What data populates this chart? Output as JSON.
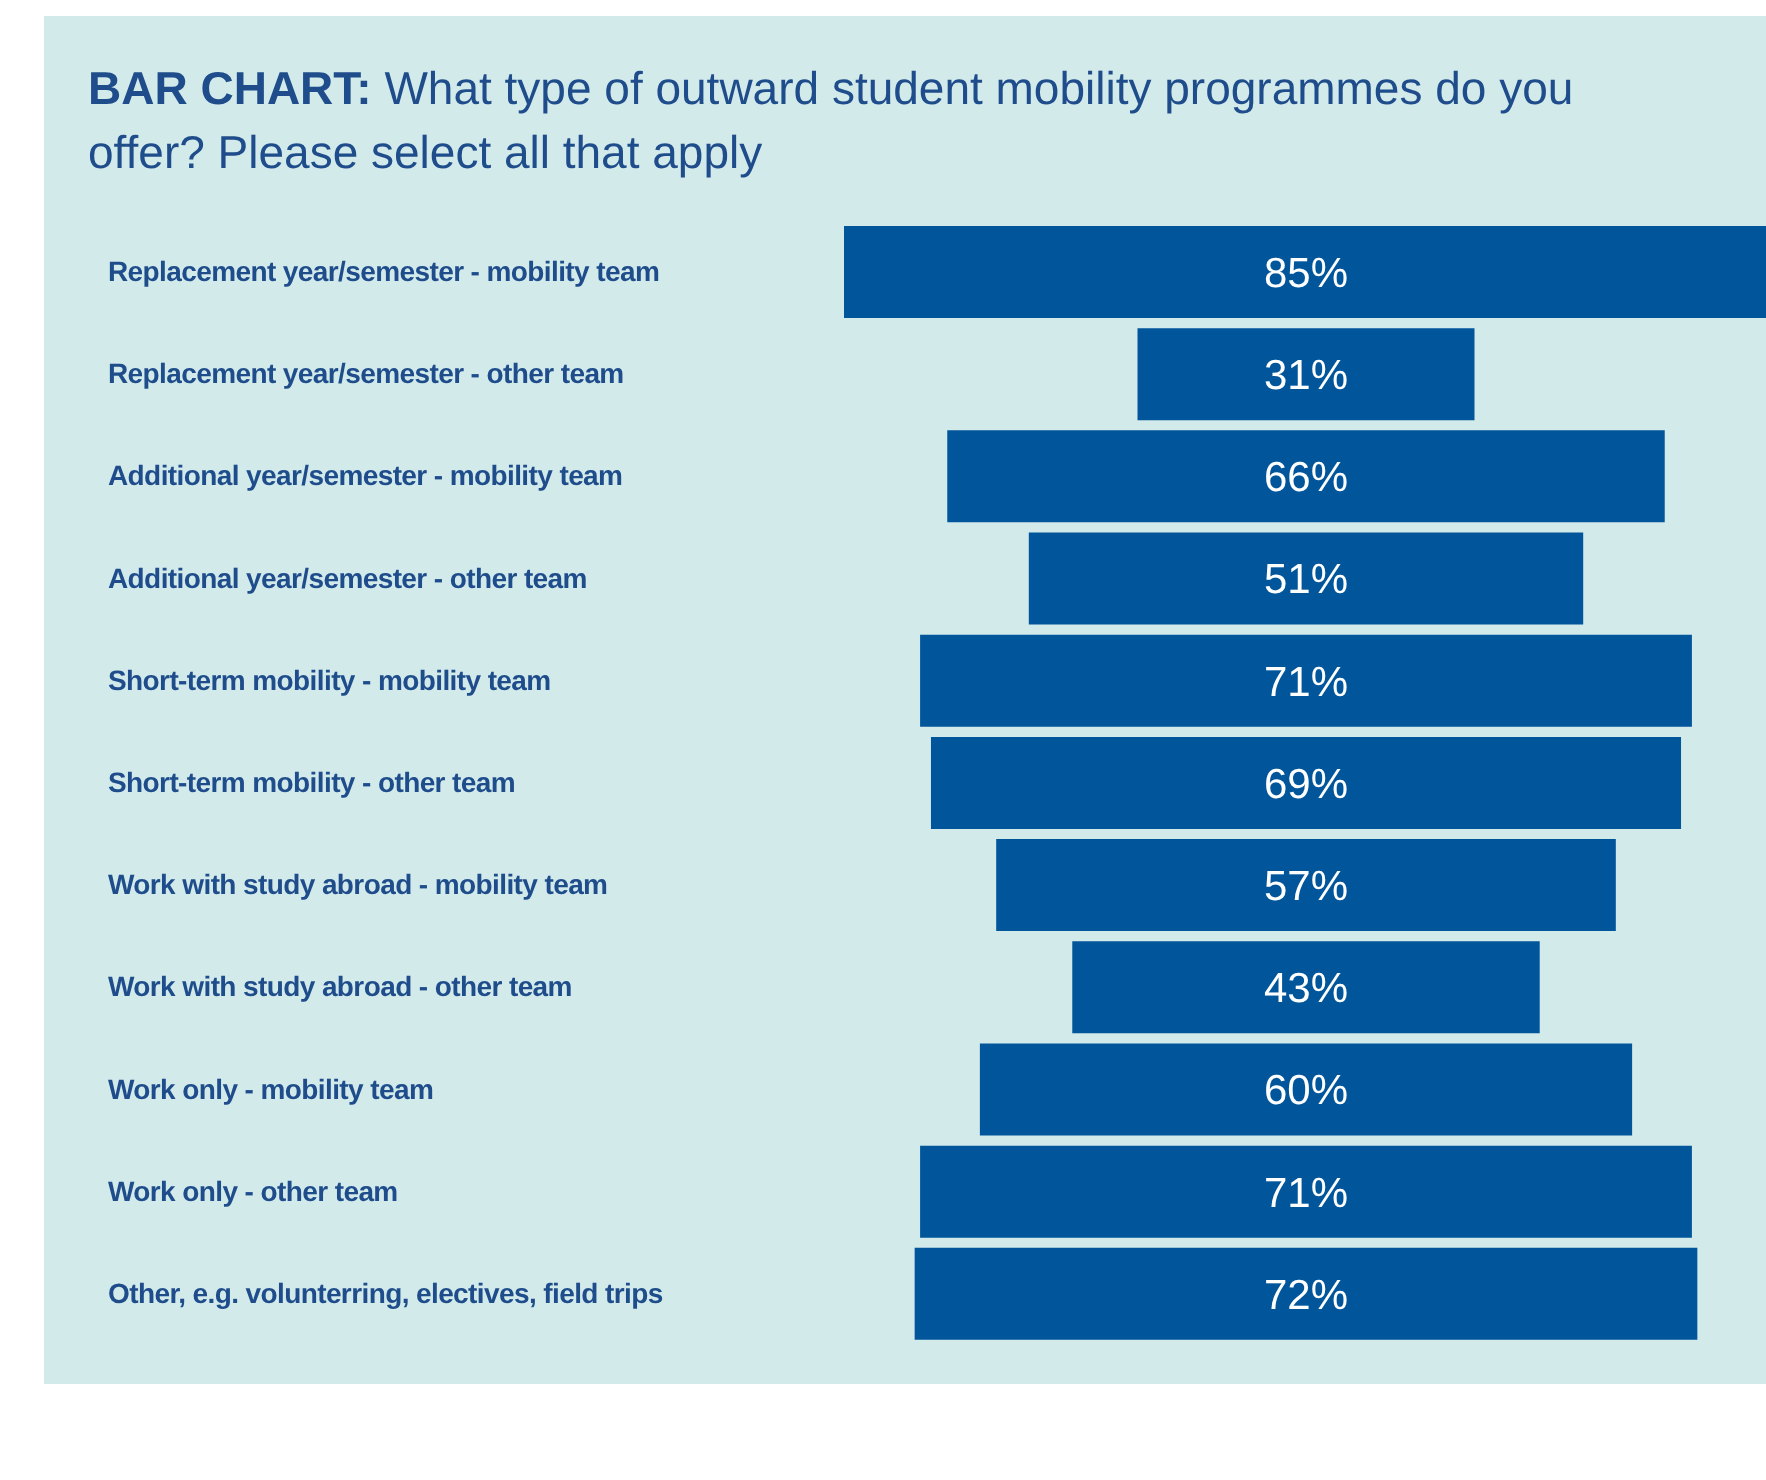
{
  "chart_data": {
    "type": "other",
    "title": "BAR CHART: What type of outward student mobility programmes do you offer? Please select all that apply",
    "categories": [
      "Replacement year/semester - mobility team",
      "Replacement year/semester - other team",
      "Additional year/semester - mobility team",
      "Additional year/semester - other team",
      "Short-term mobility - mobility team",
      "Short-term mobility - other team",
      "Work with study abroad - mobility team",
      "Work with study abroad - other team",
      "Work only - mobility team",
      "Work only - other team",
      "Other, e.g. volunterring, electives, field trips"
    ],
    "values": [
      85,
      31,
      66,
      51,
      71,
      69,
      57,
      43,
      60,
      71,
      72
    ],
    "value_labels": [
      "85%",
      "31%",
      "66%",
      "51%",
      "71%",
      "69%",
      "57%",
      "43%",
      "60%",
      "71%",
      "72%"
    ],
    "color": "#00559b"
  }
}
